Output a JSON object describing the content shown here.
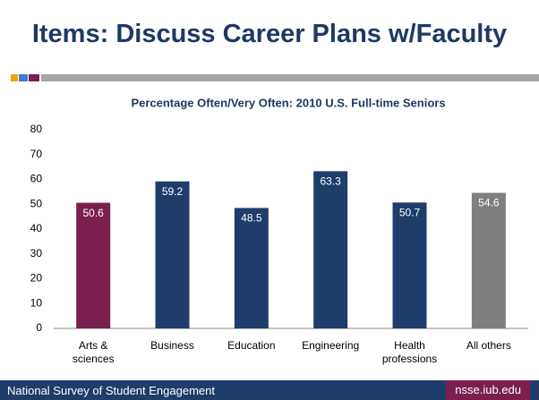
{
  "header": {
    "title": "Items: Discuss Career Plans w/Faculty"
  },
  "chart_data": {
    "type": "bar",
    "title": "Percentage Often/Very Often: 2010 U.S. Full-time Seniors",
    "categories": [
      "Arts & sciences",
      "Business",
      "Education",
      "Engineering",
      "Health professions",
      "All others"
    ],
    "values": [
      50.6,
      59.2,
      48.5,
      63.3,
      50.7,
      54.6
    ],
    "colors": [
      "#7b1f4f",
      "#1f3d6b",
      "#1f3d6b",
      "#1f3d6b",
      "#1f3d6b",
      "#7f7f7f"
    ],
    "ylim": [
      0,
      80
    ],
    "yticks": [
      0,
      10,
      20,
      30,
      40,
      50,
      60,
      70,
      80
    ],
    "grid": false
  },
  "footer": {
    "left": "National Survey of Student Engagement",
    "right": "nsse.iub.edu"
  }
}
